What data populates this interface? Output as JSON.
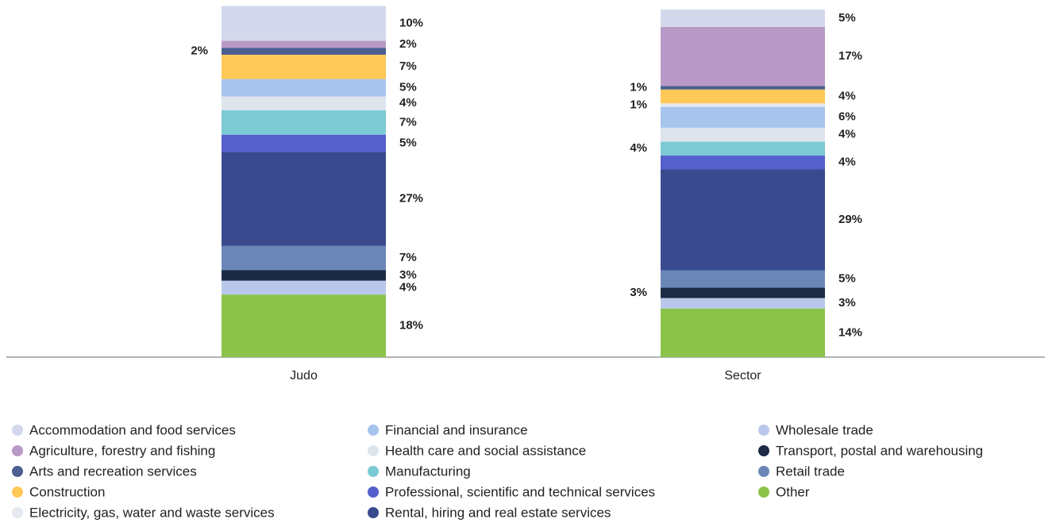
{
  "chart_data": {
    "type": "stacked_bar",
    "categories": [
      "Judo",
      "Sector"
    ],
    "ylim": [
      0,
      100
    ],
    "series": [
      {
        "name": "Accommodation and food services",
        "color": "#d4d8ec",
        "values": [
          10,
          5
        ],
        "value_labels": [
          "10%",
          "5%"
        ]
      },
      {
        "name": "Agriculture, forestry and fishing",
        "color": "#b99ac6",
        "values": [
          2,
          17
        ],
        "value_labels": [
          "2%",
          "17%"
        ]
      },
      {
        "name": "Arts and recreation services",
        "color": "#4a5f8f",
        "values": [
          2,
          1
        ],
        "value_labels": [
          "2%",
          "1%"
        ]
      },
      {
        "name": "Construction",
        "color": "#ffc857",
        "values": [
          7,
          4
        ],
        "value_labels": [
          "7%",
          "4%"
        ]
      },
      {
        "name": "Electricity, gas, water and waste services",
        "color": "#e4e8ef",
        "values": [
          null,
          1
        ],
        "value_labels": [
          null,
          "1%"
        ]
      },
      {
        "name": "Financial and insurance",
        "color": "#a7c4ed",
        "values": [
          5,
          6
        ],
        "value_labels": [
          "5%",
          "6%"
        ]
      },
      {
        "name": "Health care and social assistance",
        "color": "#dde4ec",
        "values": [
          4,
          4
        ],
        "value_labels": [
          "4%",
          "4%"
        ]
      },
      {
        "name": "Manufacturing",
        "color": "#7ccad3",
        "values": [
          7,
          4
        ],
        "value_labels": [
          "7%",
          "4%"
        ]
      },
      {
        "name": "Professional, scientific and technical services",
        "color": "#5560cc",
        "values": [
          5,
          4
        ],
        "value_labels": [
          "5%",
          "4%"
        ]
      },
      {
        "name": "Rental, hiring and real estate services",
        "color": "#394a8e",
        "values": [
          27,
          29
        ],
        "value_labels": [
          "27%",
          "29%"
        ]
      },
      {
        "name": "Wholesale trade",
        "color": "#b9c8ea",
        "values": [
          4,
          3
        ],
        "value_labels": [
          "4%",
          "3%"
        ]
      },
      {
        "name": "Transport, postal and warehousing",
        "color": "#1d2a45",
        "values": [
          3,
          3
        ],
        "value_labels": [
          "3%",
          "3%"
        ]
      },
      {
        "name": "Retail trade",
        "color": "#6a87b8",
        "values": [
          7,
          5
        ],
        "value_labels": [
          "7%",
          "5%"
        ]
      },
      {
        "name": "Other",
        "color": "#8bc34a",
        "values": [
          18,
          14
        ],
        "value_labels": [
          "18%",
          "14%"
        ]
      }
    ]
  }
}
